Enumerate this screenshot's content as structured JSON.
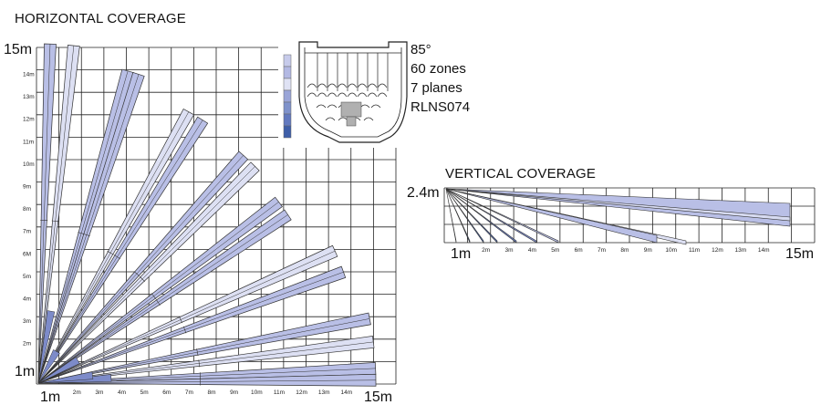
{
  "horizontal": {
    "title": "HORIZONTAL COVERAGE",
    "y_max_label": "15m",
    "origin_y_label": "1m",
    "origin_x_label": "1m",
    "x_max_label": "15m",
    "x_ticks": [
      "2m",
      "3m",
      "4m",
      "5m",
      "6m",
      "7m",
      "8m",
      "9m",
      "10m",
      "11m",
      "12m",
      "13m",
      "14m"
    ],
    "y_ticks": [
      "2m",
      "3m",
      "4m",
      "5m",
      "6M",
      "7m",
      "8m",
      "9m",
      "10m",
      "11m",
      "12m",
      "13m",
      "14m"
    ]
  },
  "vertical": {
    "title": "VERTICAL COVERAGE",
    "height_label": "2.4m",
    "origin_label": "1m",
    "x_max_label": "15m",
    "x_ticks": [
      "2m",
      "3m",
      "4m",
      "5m",
      "6m",
      "7m",
      "8m",
      "9m",
      "10m",
      "11m",
      "12m",
      "13m",
      "14m"
    ]
  },
  "info": {
    "angle": "85°",
    "zones": "60 zones",
    "planes": "7 planes",
    "model": "RLNS074"
  },
  "colors": {
    "beam": "#b9bfe6",
    "beam_light": "#dde0f3",
    "beam_dark": "#4f6fb6",
    "grid": "#222222"
  }
}
